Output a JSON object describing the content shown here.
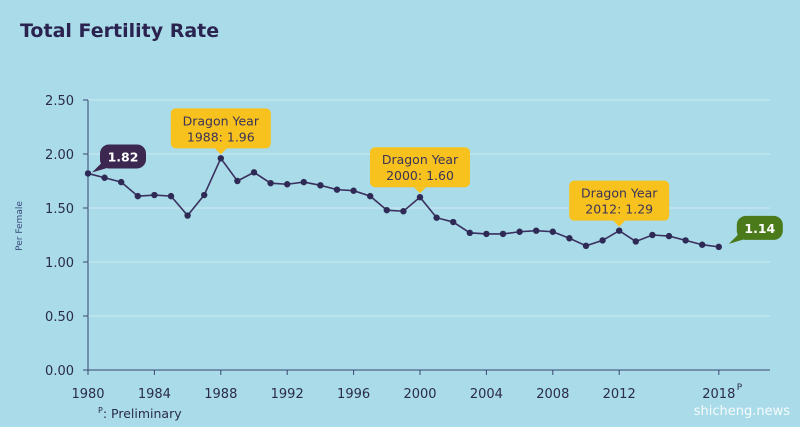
{
  "title": "Total Fertility Rate",
  "footnote": {
    "marker": "P",
    "text": ": Preliminary"
  },
  "watermark": "shicheng.news",
  "colors": {
    "background": "#a9dbe8",
    "line": "#3a2f5e",
    "callout": "#f7c21e",
    "start_label": "#3b2750",
    "end_label": "#4a7a1a"
  },
  "chart_data": {
    "type": "line",
    "title": "Total Fertility Rate",
    "ylabel": "Per Female",
    "xlabel": "",
    "xlim": [
      1980,
      2019
    ],
    "ylim": [
      0,
      2.5
    ],
    "x_ticks": [
      "1980",
      "1984",
      "1988",
      "1992",
      "1996",
      "2000",
      "2004",
      "2008",
      "2012"
    ],
    "x_tick_last": {
      "label": "2018",
      "sup": "P"
    },
    "y_ticks": [
      "0.00",
      "0.50",
      "1.00",
      "1.50",
      "2.00",
      "2.50"
    ],
    "grid": true,
    "series": [
      {
        "x": [
          1980,
          1981,
          1982,
          1983,
          1984,
          1985,
          1986,
          1987,
          1988,
          1989,
          1990,
          1991,
          1992,
          1993,
          1994,
          1995,
          1996,
          1997,
          1998,
          1999,
          2000,
          2001,
          2002,
          2003,
          2004,
          2005,
          2006,
          2007,
          2008,
          2009,
          2010,
          2011,
          2012,
          2013,
          2014,
          2015,
          2016,
          2017,
          2018
        ],
        "values": [
          1.82,
          1.78,
          1.74,
          1.61,
          1.62,
          1.61,
          1.43,
          1.62,
          1.96,
          1.75,
          1.83,
          1.73,
          1.72,
          1.74,
          1.71,
          1.67,
          1.66,
          1.61,
          1.48,
          1.47,
          1.6,
          1.41,
          1.37,
          1.27,
          1.26,
          1.26,
          1.28,
          1.29,
          1.28,
          1.22,
          1.15,
          1.2,
          1.29,
          1.19,
          1.25,
          1.24,
          1.2,
          1.16,
          1.14
        ]
      }
    ],
    "annotations": [
      {
        "line1": "Dragon Year",
        "line2": "1988: 1.96",
        "x": 1988,
        "y": 1.96
      },
      {
        "line1": "Dragon Year",
        "line2": "2000: 1.60",
        "x": 2000,
        "y": 1.6
      },
      {
        "line1": "Dragon Year",
        "line2": "2012: 1.29",
        "x": 2012,
        "y": 1.29
      }
    ],
    "start_label": {
      "text": "1.82",
      "x": 1980,
      "y": 1.82
    },
    "end_label": {
      "text": "1.14",
      "x": 2018,
      "y": 1.14
    }
  }
}
